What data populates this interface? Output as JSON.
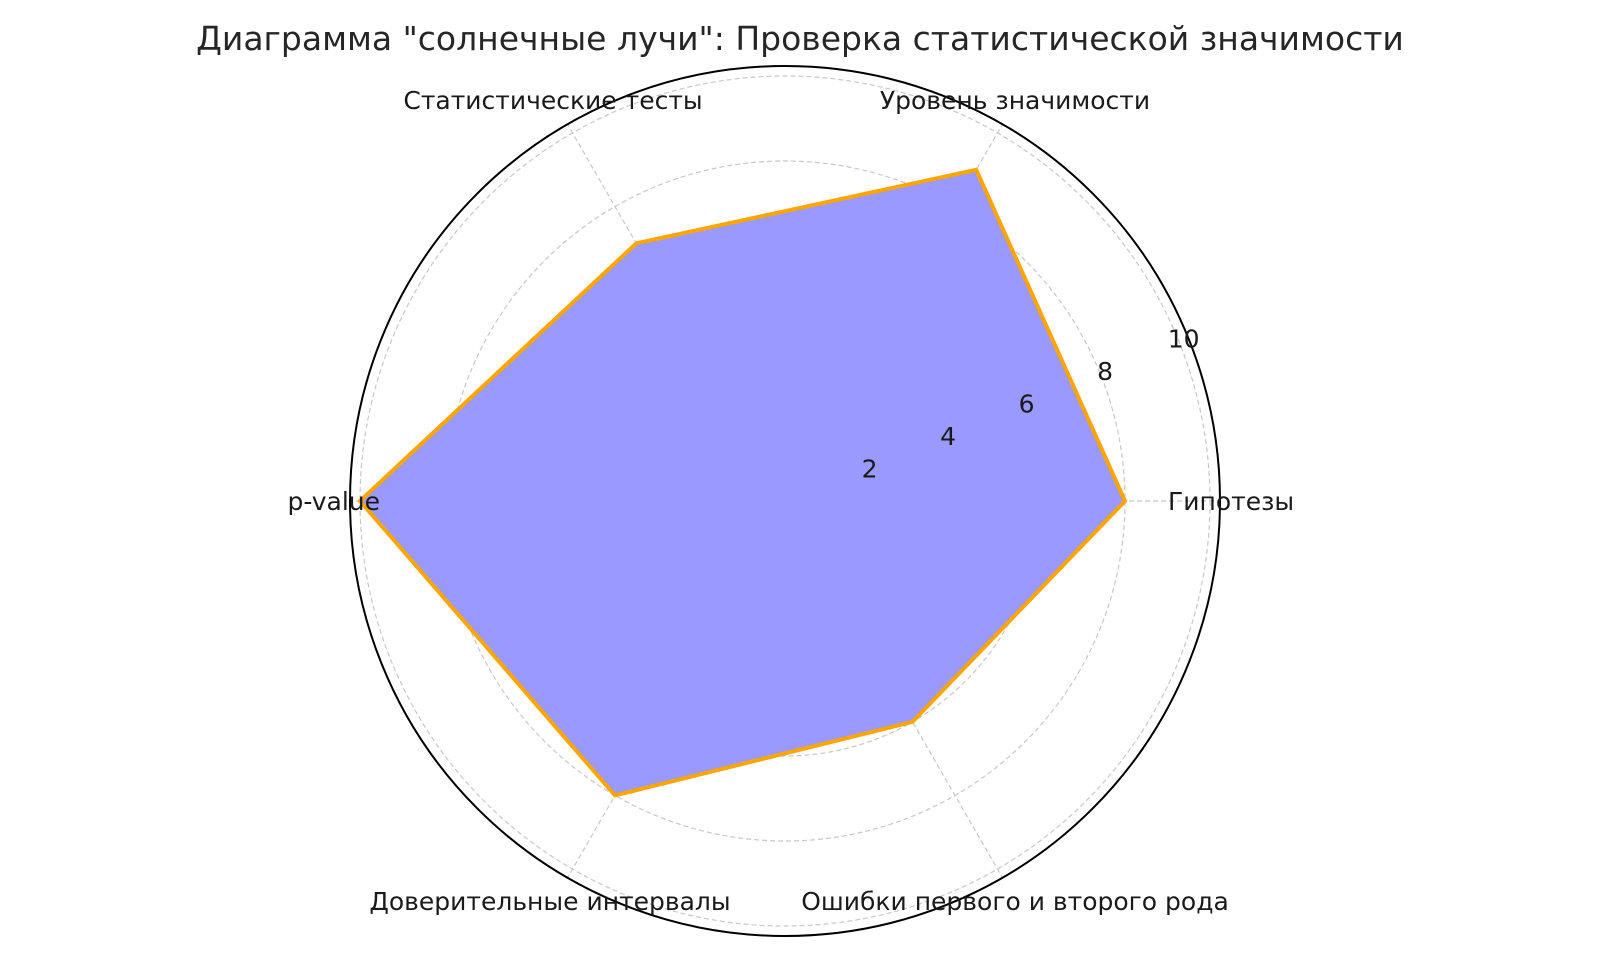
{
  "chart_data": {
    "type": "radar",
    "title": "Диаграмма \"солнечные лучи\": Проверка статистической значимости",
    "categories": [
      "Гипотезы",
      "Уровень значимости",
      "Статистические тесты",
      "p-value",
      "Доверительные интервалы",
      "Ошибки первого и второго рода"
    ],
    "values": [
      8,
      9,
      7,
      10,
      8,
      6
    ],
    "radial_ticks": [
      "2",
      "4",
      "6",
      "8",
      "10"
    ],
    "radial_tick_values": [
      2,
      4,
      6,
      8,
      10
    ],
    "rlim": [
      0,
      10
    ],
    "grid": true,
    "fill_color": "#9999ff",
    "line_color": "#ffa500"
  }
}
